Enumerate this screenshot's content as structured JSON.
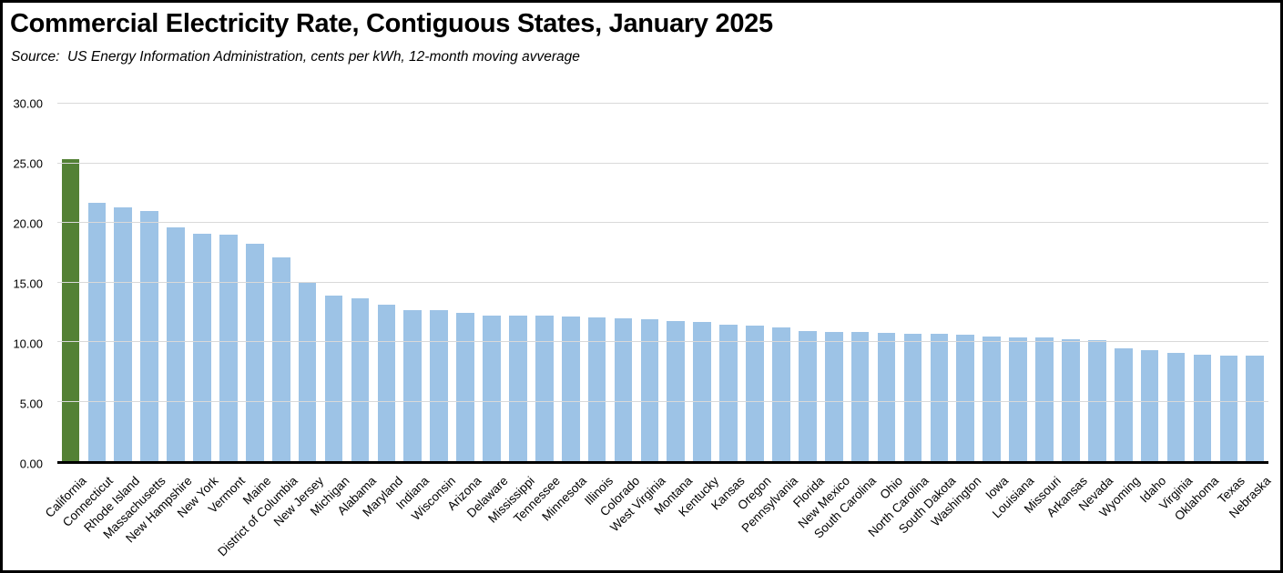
{
  "header": {
    "title": "Commercial Electricity Rate, Contiguous States, January 2025",
    "source_line": "Source:  US Energy Information Administration, cents per kWh, 12-month moving avverage"
  },
  "colors": {
    "highlight_bar": "#538135",
    "default_bar": "#9DC3E6",
    "gridline": "#D9D9D9",
    "axis_line": "#000000",
    "border": "#000000",
    "background": "#FFFFFF"
  },
  "chart_data": {
    "type": "bar",
    "title": "Commercial Electricity Rate, Contiguous States, January 2025",
    "subtitle": "Source:  US Energy Information Administration, cents per kWh, 12-month moving avverage",
    "unit": "cents per kWh",
    "legend": "none",
    "grid": "horizontal",
    "ylim": [
      0,
      30
    ],
    "yticks": [
      0,
      5,
      10,
      15,
      20,
      25,
      30
    ],
    "ytick_labels": [
      "0.00",
      "5.00",
      "10.00",
      "15.00",
      "20.00",
      "25.00",
      "30.00"
    ],
    "highlight_index": 0,
    "categories": [
      "California",
      "Connecticut",
      "Rhode Island",
      "Massachusetts",
      "New Hampshire",
      "New York",
      "Vermont",
      "Maine",
      "District of Columbia",
      "New Jersey",
      "Michigan",
      "Alabama",
      "Maryland",
      "Indiana",
      "Wisconsin",
      "Arizona",
      "Delaware",
      "Mississippi",
      "Tennessee",
      "Minnesota",
      "Illinois",
      "Colorado",
      "West Virginia",
      "Montana",
      "Kentucky",
      "Kansas",
      "Oregon",
      "Pennsylvania",
      "Florida",
      "New Mexico",
      "South Carolina",
      "Ohio",
      "North Carolina",
      "South Dakota",
      "Washington",
      "Iowa",
      "Louisiana",
      "Missouri",
      "Arkansas",
      "Nevada",
      "Wyoming",
      "Idaho",
      "Virginia",
      "Oklahoma",
      "Texas",
      "Nebraska"
    ],
    "values": [
      25.33,
      21.67,
      21.32,
      21.02,
      19.6,
      19.12,
      19.0,
      18.21,
      17.12,
      14.99,
      13.91,
      13.7,
      13.1,
      12.68,
      12.65,
      12.42,
      12.25,
      12.23,
      12.22,
      12.15,
      12.03,
      11.96,
      11.88,
      11.74,
      11.71,
      11.45,
      11.34,
      11.2,
      10.93,
      10.85,
      10.82,
      10.76,
      10.7,
      10.67,
      10.64,
      10.46,
      10.4,
      10.37,
      10.23,
      10.15,
      9.46,
      9.29,
      9.07,
      8.96,
      8.86,
      8.84
    ]
  }
}
